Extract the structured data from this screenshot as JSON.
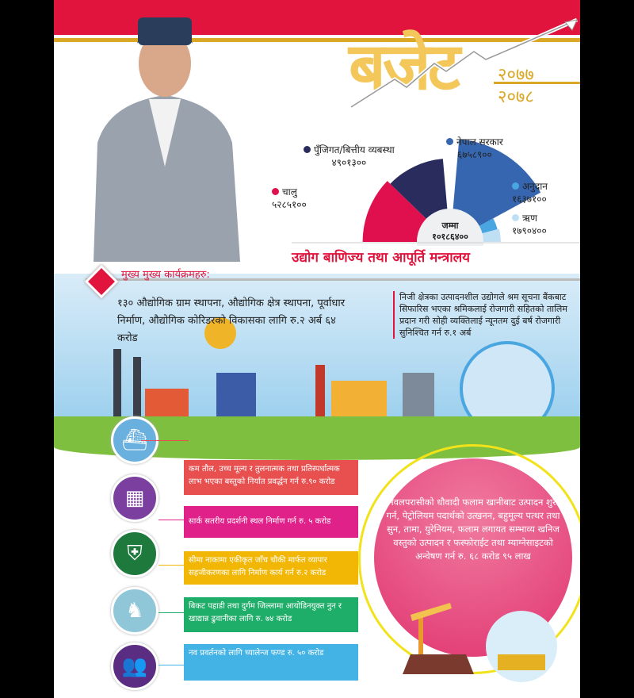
{
  "header": {
    "title": "बजेट",
    "year_top": "२०७७",
    "year_bottom": "२०७८"
  },
  "chart_data": {
    "type": "rose",
    "center_label": "जम्मा",
    "center_value": "१०१८६४००",
    "series": [
      {
        "name": "चालु",
        "label_value": "५२८५१००",
        "value": 5285100,
        "color": "#e0104e",
        "side": "left"
      },
      {
        "name": "पुँजिगत/बित्तीय व्यबस्था",
        "label_value": "४९०१३००",
        "value": 4901300,
        "color": "#2b2c5e",
        "side": "left"
      },
      {
        "name": "नेपाल सरकार",
        "label_value": "६७५८९००",
        "value": 6758900,
        "color": "#3766b0",
        "side": "right"
      },
      {
        "name": "अनुदान",
        "label_value": "१६३७१००",
        "value": 1637100,
        "color": "#4aa6e0",
        "side": "right"
      },
      {
        "name": "ऋण",
        "label_value": "१७९०४००",
        "value": 1790400,
        "color": "#bfdff5",
        "side": "right"
      }
    ]
  },
  "ministry": "उद्योग बाणिज्य तथा आपूर्ति मन्त्रालय",
  "section_title": "मुख्य मुख्य कार्यक्रमहरु:",
  "main_text": "१३० औद्योगिक ग्राम स्थापना, औद्योगिक क्षेत्र स्थापना, पूर्वाधार निर्माण, औद्योगिक कोरिडरको विकासका लागि रु.२ अर्ब ६४ करोड",
  "side_text": "निजी क्षेत्रका उत्पादनशील उद्योगले श्रम सूचना बैंकबाट सिफारिस भएका श्रमिकलाई रोजगारी सहितको तालिम प्रदान गरी सोही व्यक्तिलाई न्यूनतम दुई बर्ष रोजगारी सुनिश्चित गर्न रु.१ अर्ब",
  "items": [
    {
      "text": "कम तौल, उच्च मूल्य र तुलनात्मक तथा प्रतिस्पर्धात्मक लाभ भएका बस्तुको निर्यात प्रवर्द्धन गर्न रु.९० करोड",
      "color": "#e8504f",
      "icon": "cargo-ship-icon"
    },
    {
      "text": "सार्क सतरीय प्रदर्शनी स्थल निर्माण गर्न रु. ५ करोड",
      "color": "#e0218a",
      "icon": "expo-icon"
    },
    {
      "text": "सीमा नाकामा एकीकृत जाँच चौकी मार्फत व्यापार सहजीकरणका लागि निर्माण कार्य गर्न रु.२ करोड",
      "color": "#f2b705",
      "icon": "border-checkpoint-icon"
    },
    {
      "text": "बिकट पहाडी तथा दुर्गम जिल्लामा आयोडिनयुक्त नुन र खाद्यान्न ढुवानीका लागि रु. ७४ करोड",
      "color": "#1fae6a",
      "icon": "mule-transport-icon"
    },
    {
      "text": "नव प्रवर्तनको लागि च्यालेन्ज फण्ड रु. ५० करोड",
      "color": "#43b3e6",
      "icon": "people-group-icon"
    }
  ],
  "circle_text": "नवलपरासीको धौवादी फलाम खानीबाट उत्पादन शुरु गर्न, पेट्रोलियम पदार्थको उत्खनन, बहुमूल्य पत्थर तथा सुन, तामा, युरेनियम, फलाम लगायत सम्भाव्य खनिज वस्तुको उत्पादन र फस्फोराईट तथा म्याग्नेसाइटको अन्वेषण गर्न रु. ६८ करोड ९५ लाख"
}
